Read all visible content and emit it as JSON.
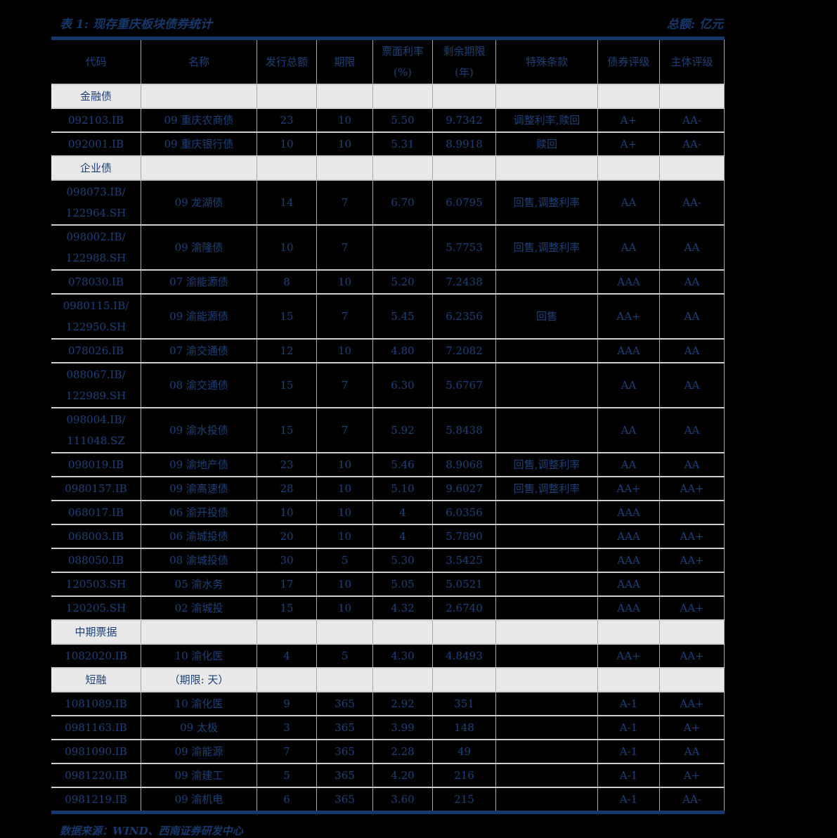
{
  "page": {
    "title": "表 1: 现存重庆板块债券统计",
    "unit_note": "总额: 亿元",
    "source_note": "数据来源：WIND、西南证券研发中心"
  },
  "colors": {
    "background": "#000000",
    "text_navy": "#1d4077",
    "title_navy": "#17386b",
    "rule_navy": "#17386b",
    "section_row_bg": "#e9e9e9",
    "grid_line": "#a8a8a8",
    "row_line": "#cfcfcf"
  },
  "table": {
    "columns": [
      {
        "label": "代码",
        "sub": ""
      },
      {
        "label": "名称",
        "sub": ""
      },
      {
        "label": "发行总额",
        "sub": ""
      },
      {
        "label": "期限",
        "sub": ""
      },
      {
        "label": "票面利率",
        "sub": "(%)"
      },
      {
        "label": "剩余期限",
        "sub": "(年)"
      },
      {
        "label": "特殊条款",
        "sub": ""
      },
      {
        "label": "债券评级",
        "sub": ""
      },
      {
        "label": "主体评级",
        "sub": ""
      }
    ],
    "rows": [
      {
        "type": "section",
        "label": "金融债",
        "note": ""
      },
      {
        "type": "data",
        "code": "092103.IB",
        "code2": "",
        "name": "09 重庆农商债",
        "amount": "23",
        "term": "10",
        "coupon": "5.50",
        "remaining": "9.7342",
        "clauses": "调整利率,赎回",
        "bond_rating": "A+",
        "issuer_rating": "AA-"
      },
      {
        "type": "data",
        "code": "092001.IB",
        "code2": "",
        "name": "09 重庆银行债",
        "amount": "10",
        "term": "10",
        "coupon": "5.31",
        "remaining": "8.9918",
        "clauses": "赎回",
        "bond_rating": "A+",
        "issuer_rating": "AA-"
      },
      {
        "type": "section",
        "label": "企业债",
        "note": ""
      },
      {
        "type": "data",
        "code": "098073.IB/",
        "code2": "122964.SH",
        "name": "09 龙湖债",
        "amount": "14",
        "term": "7",
        "coupon": "6.70",
        "remaining": "6.0795",
        "clauses": "回售,调整利率",
        "bond_rating": "AA",
        "issuer_rating": "AA-"
      },
      {
        "type": "data",
        "code": "098002.IB/",
        "code2": "122988.SH",
        "name": "09 渝隆债",
        "amount": "10",
        "term": "7",
        "coupon": "",
        "remaining": "5.7753",
        "clauses": "回售,调整利率",
        "bond_rating": "AA",
        "issuer_rating": "AA"
      },
      {
        "type": "data",
        "code": "078030.IB",
        "code2": "",
        "name": "07 渝能源债",
        "amount": "8",
        "term": "10",
        "coupon": "5.20",
        "remaining": "7.2438",
        "clauses": "",
        "bond_rating": "AAA",
        "issuer_rating": "AA"
      },
      {
        "type": "data",
        "code": "0980115.IB/",
        "code2": "122950.SH",
        "name": "09 渝能源债",
        "amount": "15",
        "term": "7",
        "coupon": "5.45",
        "remaining": "6.2356",
        "clauses": "回售",
        "bond_rating": "AA+",
        "issuer_rating": "AA"
      },
      {
        "type": "data",
        "code": "078026.IB",
        "code2": "",
        "name": "07 渝交通债",
        "amount": "12",
        "term": "10",
        "coupon": "4.80",
        "remaining": "7.2082",
        "clauses": "",
        "bond_rating": "AAA",
        "issuer_rating": "AA"
      },
      {
        "type": "data",
        "code": "088067.IB/",
        "code2": "122989.SH",
        "name": "08 渝交通债",
        "amount": "15",
        "term": "7",
        "coupon": "6.30",
        "remaining": "5.6767",
        "clauses": "",
        "bond_rating": "AA",
        "issuer_rating": "AA"
      },
      {
        "type": "data",
        "code": "098004.IB/",
        "code2": "111048.SZ",
        "name": "09 渝水投债",
        "amount": "15",
        "term": "7",
        "coupon": "5.92",
        "remaining": "5.8438",
        "clauses": "",
        "bond_rating": "AA",
        "issuer_rating": "AA"
      },
      {
        "type": "data",
        "code": "098019.IB",
        "code2": "",
        "name": "09 渝地产债",
        "amount": "23",
        "term": "10",
        "coupon": "5.46",
        "remaining": "8.9068",
        "clauses": "回售,调整利率",
        "bond_rating": "AA",
        "issuer_rating": "AA"
      },
      {
        "type": "data",
        "code": "0980157.IB",
        "code2": "",
        "name": "09 渝高速债",
        "amount": "28",
        "term": "10",
        "coupon": "5.10",
        "remaining": "9.6027",
        "clauses": "回售,调整利率",
        "bond_rating": "AA+",
        "issuer_rating": "AA+"
      },
      {
        "type": "data",
        "code": "068017.IB",
        "code2": "",
        "name": "06 渝开投债",
        "amount": "10",
        "term": "10",
        "coupon": "4",
        "remaining": "6.0356",
        "clauses": "",
        "bond_rating": "AAA",
        "issuer_rating": ""
      },
      {
        "type": "data",
        "code": "068003.IB",
        "code2": "",
        "name": "06 渝城投债",
        "amount": "20",
        "term": "10",
        "coupon": "4",
        "remaining": "5.7890",
        "clauses": "",
        "bond_rating": "AAA",
        "issuer_rating": "AA+"
      },
      {
        "type": "data",
        "code": "088050.IB",
        "code2": "",
        "name": "08 渝城投债",
        "amount": "30",
        "term": "5",
        "coupon": "5.30",
        "remaining": "3.5425",
        "clauses": "",
        "bond_rating": "AAA",
        "issuer_rating": "AA+"
      },
      {
        "type": "data",
        "code": "120503.SH",
        "code2": "",
        "name": "05 渝水务",
        "amount": "17",
        "term": "10",
        "coupon": "5.05",
        "remaining": "5.0521",
        "clauses": "",
        "bond_rating": "AAA",
        "issuer_rating": ""
      },
      {
        "type": "data",
        "code": "120205.SH",
        "code2": "",
        "name": "02 渝城投",
        "amount": "15",
        "term": "10",
        "coupon": "4.32",
        "remaining": "2.6740",
        "clauses": "",
        "bond_rating": "AAA",
        "issuer_rating": "AA+"
      },
      {
        "type": "section",
        "label": "中期票据",
        "note": ""
      },
      {
        "type": "data",
        "code": "1082020.IB",
        "code2": "",
        "name": "10 渝化医",
        "amount": "4",
        "term": "5",
        "coupon": "4.30",
        "remaining": "4.8493",
        "clauses": "",
        "bond_rating": "AA+",
        "issuer_rating": "AA+"
      },
      {
        "type": "section",
        "label": "短融",
        "note": "（期限: 天）"
      },
      {
        "type": "data",
        "code": "1081089.IB",
        "code2": "",
        "name": "10 渝化医",
        "amount": "9",
        "term": "365",
        "coupon": "2.92",
        "remaining": "351",
        "clauses": "",
        "bond_rating": "A-1",
        "issuer_rating": "AA+"
      },
      {
        "type": "data",
        "code": "0981163.IB",
        "code2": "",
        "name": "09 太极",
        "amount": "3",
        "term": "365",
        "coupon": "3.99",
        "remaining": "148",
        "clauses": "",
        "bond_rating": "A-1",
        "issuer_rating": "A+"
      },
      {
        "type": "data",
        "code": "0981090.IB",
        "code2": "",
        "name": "09 渝能源",
        "amount": "7",
        "term": "365",
        "coupon": "2.28",
        "remaining": "49",
        "clauses": "",
        "bond_rating": "A-1",
        "issuer_rating": "AA"
      },
      {
        "type": "data",
        "code": "0981220.IB",
        "code2": "",
        "name": "09 渝建工",
        "amount": "5",
        "term": "365",
        "coupon": "4.20",
        "remaining": "216",
        "clauses": "",
        "bond_rating": "A-1",
        "issuer_rating": "A+"
      },
      {
        "type": "data",
        "code": "0981219.IB",
        "code2": "",
        "name": "09 渝机电",
        "amount": "6",
        "term": "365",
        "coupon": "3.60",
        "remaining": "215",
        "clauses": "",
        "bond_rating": "A-1",
        "issuer_rating": "AA-"
      }
    ]
  }
}
